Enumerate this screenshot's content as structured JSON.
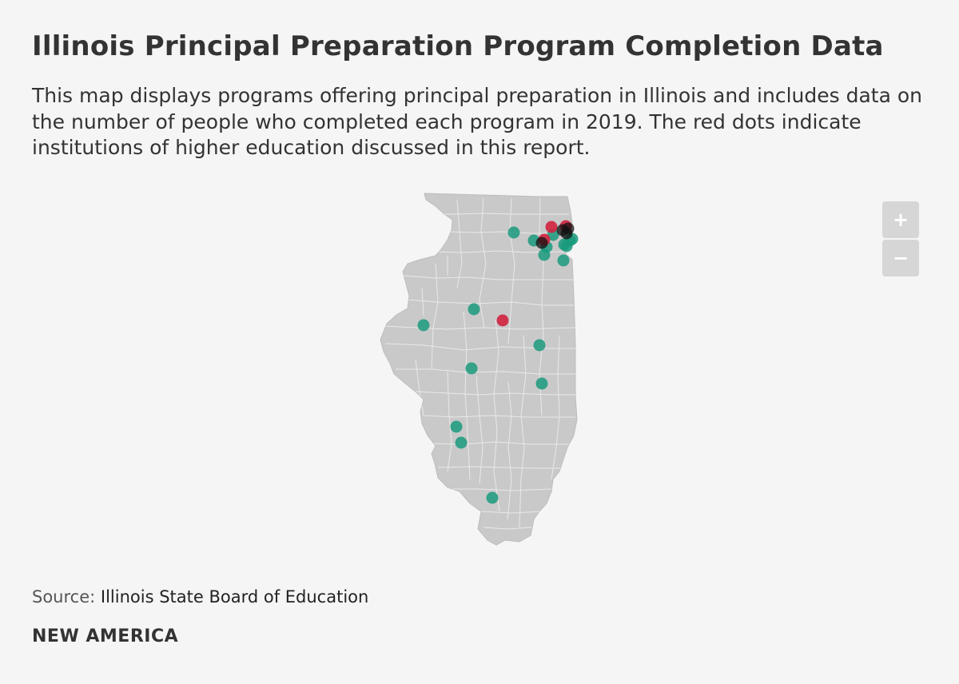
{
  "header": {
    "title": "Illinois Principal Preparation Program Completion Data",
    "subtitle": "This map displays programs offering principal preparation in Illinois and includes data on the number of people who completed each program in 2019. The red dots indicate institutions of higher education discussed in this report."
  },
  "zoom": {
    "in_label": "+",
    "out_label": "−"
  },
  "footer": {
    "source_label": "Source:",
    "source_text": "Illinois State Board of Education",
    "brand": "NEW AMERICA"
  },
  "colors": {
    "state_fill": "#c9c9ca",
    "county_lines": "#e9e9e9",
    "program_dot": "#1a9a7c",
    "report_dot": "#d1223f"
  }
}
